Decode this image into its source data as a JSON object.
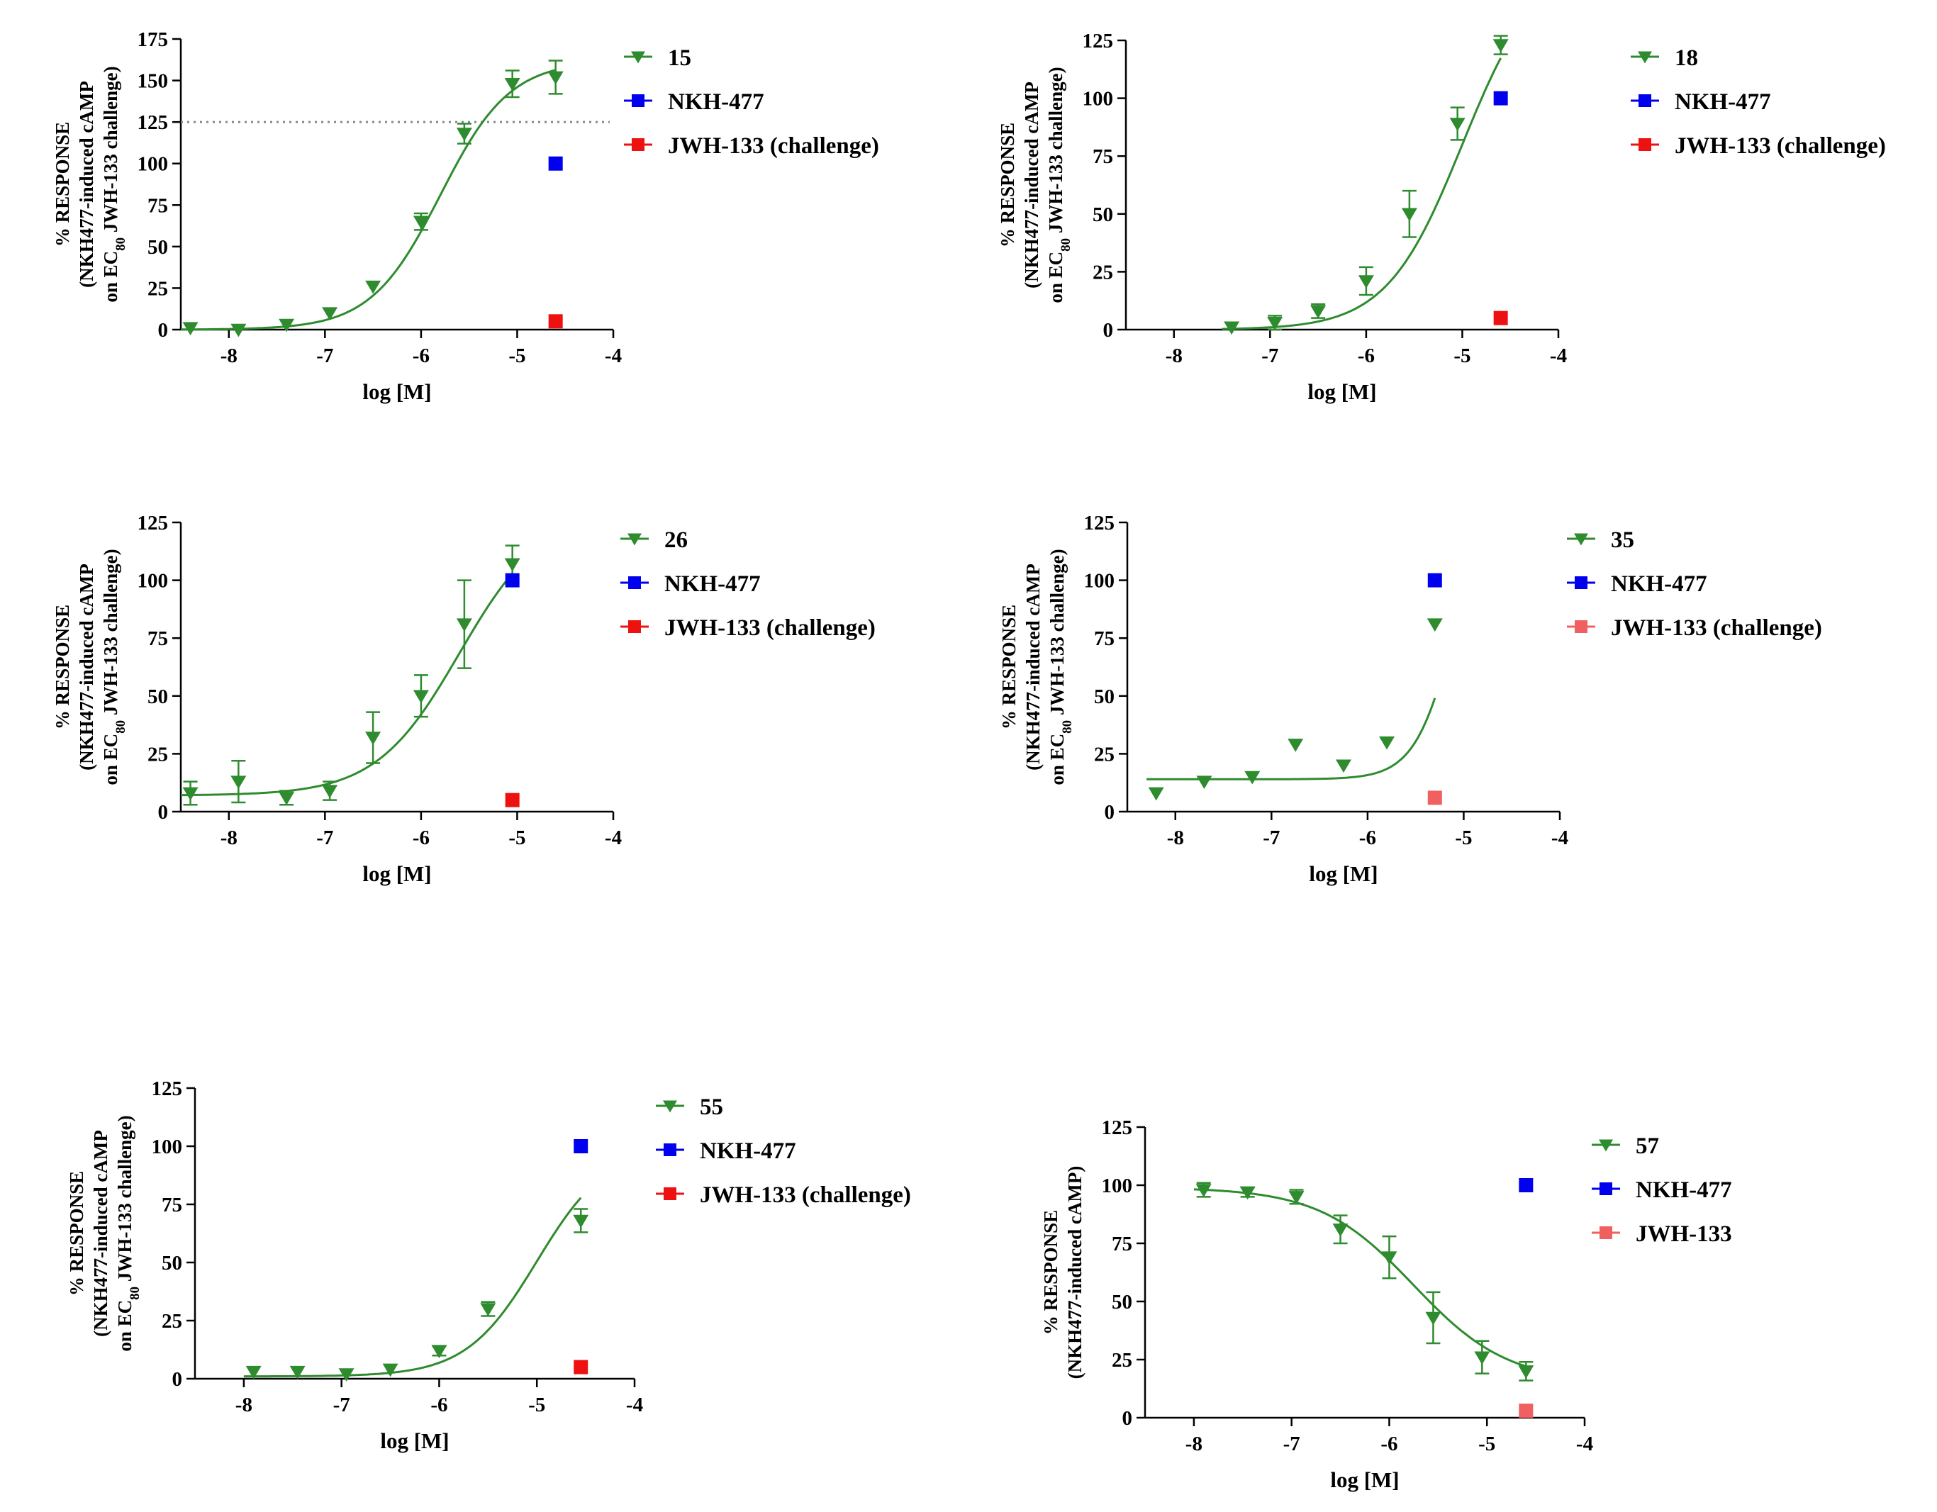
{
  "figure_title": "",
  "chart_data": [
    {
      "type": "scatter",
      "panel": "top-left",
      "title": "",
      "xlabel": "log [M]",
      "ylabel_lines": [
        "% RESPONSE",
        "(NKH477-induced cAMP",
        "on EC{80} JWH-133 challenge)"
      ],
      "xlim": [
        -8.5,
        -4
      ],
      "ylim": [
        0,
        175
      ],
      "xticks": [
        -8,
        -7,
        -6,
        -5,
        -4
      ],
      "yticks": [
        0,
        25,
        50,
        75,
        100,
        125,
        150,
        175
      ],
      "reference_line": 125,
      "legend_position": "top-right",
      "legend": [
        "15",
        "NKH-477",
        "JWH-133  (challenge)"
      ],
      "compound": {
        "name": "15",
        "color": "#2e8b2e",
        "points": [
          {
            "x": -8.4,
            "y": 1,
            "err": 0
          },
          {
            "x": -7.9,
            "y": 0,
            "err": 0
          },
          {
            "x": -7.4,
            "y": 3,
            "err": 0
          },
          {
            "x": -6.95,
            "y": 10,
            "err": 0
          },
          {
            "x": -6.5,
            "y": 26,
            "err": 0
          },
          {
            "x": -6.0,
            "y": 65,
            "err": 5
          },
          {
            "x": -5.55,
            "y": 118,
            "err": 6
          },
          {
            "x": -5.05,
            "y": 148,
            "err": 8
          },
          {
            "x": -4.6,
            "y": 152,
            "err": 10
          }
        ],
        "curve": {
          "bottom": 0,
          "top": 162,
          "logEC50": -5.8,
          "hill": 1.2
        }
      },
      "controls": [
        {
          "name": "NKH-477",
          "color": "#0000ee",
          "x": -4.6,
          "y": 100
        },
        {
          "name": "JWH-133  (challenge)",
          "color": "#ee1111",
          "x": -4.6,
          "y": 5
        }
      ]
    },
    {
      "type": "scatter",
      "panel": "top-right",
      "title": "",
      "xlabel": "log [M]",
      "ylabel_lines": [
        "% RESPONSE",
        "(NKH477-induced cAMP",
        "on EC{80} JWH-133 challenge)"
      ],
      "xlim": [
        -8.5,
        -4
      ],
      "ylim": [
        0,
        125
      ],
      "xticks": [
        -8,
        -7,
        -6,
        -5,
        -4
      ],
      "yticks": [
        0,
        25,
        50,
        75,
        100,
        125
      ],
      "legend_position": "top-right",
      "legend": [
        "18",
        "NKH-477",
        "JWH-133 (challenge)"
      ],
      "compound": {
        "name": "18",
        "color": "#2e8b2e",
        "points": [
          {
            "x": -7.4,
            "y": 1,
            "err": 0
          },
          {
            "x": -6.95,
            "y": 3,
            "err": 3
          },
          {
            "x": -6.5,
            "y": 8,
            "err": 3
          },
          {
            "x": -6.0,
            "y": 21,
            "err": 6
          },
          {
            "x": -5.55,
            "y": 50,
            "err": 10
          },
          {
            "x": -5.05,
            "y": 89,
            "err": 7
          },
          {
            "x": -4.6,
            "y": 123,
            "err": 4
          }
        ],
        "curve": {
          "bottom": 0,
          "top": 160,
          "logEC50": -5.0,
          "hill": 1.1
        }
      },
      "controls": [
        {
          "name": "NKH-477",
          "color": "#0000ee",
          "x": -4.6,
          "y": 100
        },
        {
          "name": "JWH-133 (challenge)",
          "color": "#ee1111",
          "x": -4.6,
          "y": 5
        }
      ]
    },
    {
      "type": "scatter",
      "panel": "middle-left",
      "title": "",
      "xlabel": "log [M]",
      "ylabel_lines": [
        "% RESPONSE",
        "(NKH477-induced cAMP",
        "on EC{80} JWH-133 challenge)"
      ],
      "xlim": [
        -8.5,
        -4
      ],
      "ylim": [
        0,
        125
      ],
      "xticks": [
        -8,
        -7,
        -6,
        -5,
        -4
      ],
      "yticks": [
        0,
        25,
        50,
        75,
        100,
        125
      ],
      "legend_position": "top-right",
      "legend": [
        "26",
        "NKH-477",
        "JWH-133 (challenge)"
      ],
      "compound": {
        "name": "26",
        "color": "#2e8b2e",
        "points": [
          {
            "x": -8.4,
            "y": 8,
            "err": 5
          },
          {
            "x": -7.9,
            "y": 13,
            "err": 9
          },
          {
            "x": -7.4,
            "y": 6,
            "err": 3
          },
          {
            "x": -6.95,
            "y": 9,
            "err": 4
          },
          {
            "x": -6.5,
            "y": 32,
            "err": 11
          },
          {
            "x": -6.0,
            "y": 50,
            "err": 9
          },
          {
            "x": -5.55,
            "y": 81,
            "err": 19
          },
          {
            "x": -5.05,
            "y": 107,
            "err": 8
          }
        ],
        "curve": {
          "bottom": 7,
          "top": 130,
          "logEC50": -5.6,
          "hill": 1.0
        }
      },
      "controls": [
        {
          "name": "NKH-477",
          "color": "#0000ee",
          "x": -5.05,
          "y": 100
        },
        {
          "name": "JWH-133 (challenge)",
          "color": "#ee1111",
          "x": -5.05,
          "y": 5
        }
      ]
    },
    {
      "type": "scatter",
      "panel": "middle-right",
      "title": "",
      "xlabel": "log [M]",
      "ylabel_lines": [
        "% RESPONSE",
        "(NKH477-induced cAMP",
        "on EC{80} JWH-133 challenge)"
      ],
      "xlim": [
        -8.5,
        -4
      ],
      "ylim": [
        0,
        125
      ],
      "xticks": [
        -8,
        -7,
        -6,
        -5,
        -4
      ],
      "yticks": [
        0,
        25,
        50,
        75,
        100,
        125
      ],
      "legend_position": "top-right",
      "legend": [
        "35",
        "NKH-477",
        "JWH-133 (challenge)"
      ],
      "compound": {
        "name": "35",
        "color": "#2e8b2e",
        "points": [
          {
            "x": -8.2,
            "y": 8,
            "err": 0
          },
          {
            "x": -7.7,
            "y": 13,
            "err": 0
          },
          {
            "x": -7.2,
            "y": 15,
            "err": 0
          },
          {
            "x": -6.75,
            "y": 29,
            "err": 0
          },
          {
            "x": -6.25,
            "y": 20,
            "err": 0
          },
          {
            "x": -5.8,
            "y": 30,
            "err": 0
          },
          {
            "x": -5.3,
            "y": 81,
            "err": 0
          }
        ],
        "curve": {
          "bottom": 14,
          "top": 160,
          "logEC50": -5.05,
          "hill": 2.0
        }
      },
      "controls": [
        {
          "name": "NKH-477",
          "color": "#0000ee",
          "x": -5.3,
          "y": 100
        },
        {
          "name": "JWH-133 (challenge)",
          "color": "#f06060",
          "x": -5.3,
          "y": 6
        }
      ]
    },
    {
      "type": "scatter",
      "panel": "bottom-left",
      "title": "",
      "xlabel": "log [M]",
      "ylabel_lines": [
        "% RESPONSE",
        "(NKH477-induced cAMP",
        "on EC{80} JWH-133 challenge)"
      ],
      "xlim": [
        -8.5,
        -4
      ],
      "ylim": [
        0,
        125
      ],
      "xticks": [
        -8,
        -7,
        -6,
        -5,
        -4
      ],
      "yticks": [
        0,
        25,
        50,
        75,
        100,
        125
      ],
      "legend_position": "top-right",
      "legend": [
        "55",
        "NKH-477",
        "JWH-133 (challenge)"
      ],
      "compound": {
        "name": "55",
        "color": "#2e8b2e",
        "points": [
          {
            "x": -7.9,
            "y": 3,
            "err": 0
          },
          {
            "x": -7.45,
            "y": 3,
            "err": 0
          },
          {
            "x": -6.95,
            "y": 2,
            "err": 0
          },
          {
            "x": -6.5,
            "y": 4,
            "err": 0
          },
          {
            "x": -6.0,
            "y": 12,
            "err": 2
          },
          {
            "x": -5.5,
            "y": 30,
            "err": 3
          },
          {
            "x": -4.55,
            "y": 68,
            "err": 5
          }
        ],
        "curve": {
          "bottom": 1,
          "top": 100,
          "logEC50": -5.0,
          "hill": 1.2
        }
      },
      "controls": [
        {
          "name": "NKH-477",
          "color": "#0000ee",
          "x": -4.55,
          "y": 100
        },
        {
          "name": "JWH-133 (challenge)",
          "color": "#ee1111",
          "x": -4.55,
          "y": 5
        }
      ]
    },
    {
      "type": "scatter",
      "panel": "bottom-right",
      "title": "",
      "xlabel": "log [M]",
      "ylabel_lines": [
        "% RESPONSE",
        "(NKH477-induced cAMP)"
      ],
      "xlim": [
        -8.5,
        -4
      ],
      "ylim": [
        0,
        125
      ],
      "xticks": [
        -8,
        -7,
        -6,
        -5,
        -4
      ],
      "yticks": [
        0,
        25,
        50,
        75,
        100,
        125
      ],
      "legend_position": "top-right",
      "legend": [
        "57",
        "NKH-477",
        "JWH-133"
      ],
      "compound": {
        "name": "57",
        "color": "#2e8b2e",
        "points": [
          {
            "x": -7.9,
            "y": 98,
            "err": 3
          },
          {
            "x": -7.45,
            "y": 97,
            "err": 2
          },
          {
            "x": -6.95,
            "y": 95,
            "err": 3
          },
          {
            "x": -6.5,
            "y": 81,
            "err": 6
          },
          {
            "x": -6.0,
            "y": 69,
            "err": 9
          },
          {
            "x": -5.55,
            "y": 43,
            "err": 11
          },
          {
            "x": -5.05,
            "y": 26,
            "err": 7
          },
          {
            "x": -4.6,
            "y": 20,
            "err": 4
          }
        ],
        "curve": {
          "bottom": 15,
          "top": 99,
          "logEC50": -5.75,
          "hill": -0.9
        }
      },
      "controls": [
        {
          "name": "NKH-477",
          "color": "#0000ee",
          "x": -4.6,
          "y": 100
        },
        {
          "name": "JWH-133",
          "color": "#f06060",
          "x": -4.6,
          "y": 3
        }
      ]
    }
  ]
}
